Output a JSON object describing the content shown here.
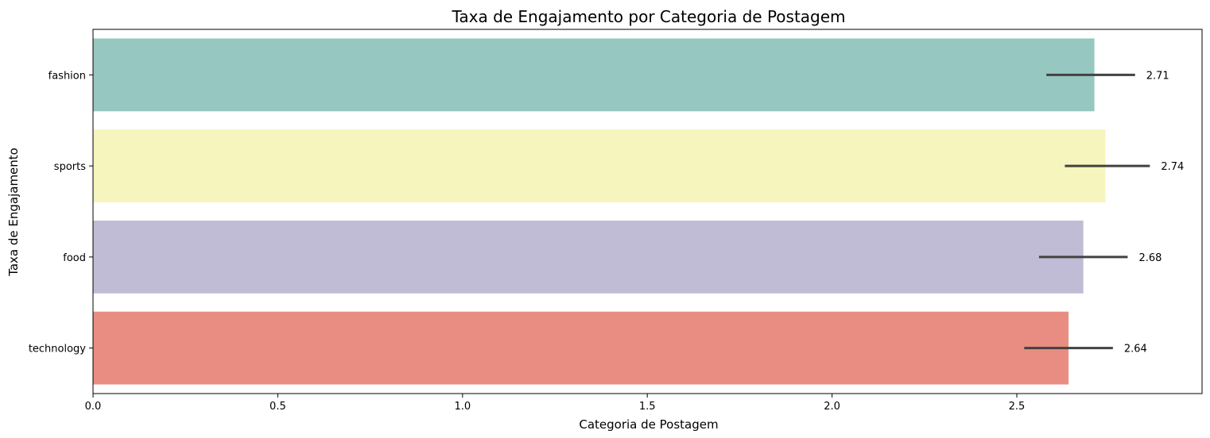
{
  "chart_data": {
    "type": "bar",
    "orientation": "horizontal",
    "title": "Taxa de Engajamento por Categoria de Postagem",
    "xlabel": "Categoria de Postagem",
    "ylabel": "Taxa de Engajamento",
    "xlim": [
      0,
      3.0
    ],
    "xticks": [
      0.0,
      0.5,
      1.0,
      1.5,
      2.0,
      2.5
    ],
    "xtick_labels": [
      "0.0",
      "0.5",
      "1.0",
      "1.5",
      "2.0",
      "2.5"
    ],
    "grid": false,
    "categories": [
      "fashion",
      "sports",
      "food",
      "technology"
    ],
    "values": [
      2.71,
      2.74,
      2.68,
      2.64
    ],
    "value_labels": [
      "2.71",
      "2.74",
      "2.68",
      "2.64"
    ],
    "error_bars": [
      [
        2.58,
        2.82
      ],
      [
        2.63,
        2.86
      ],
      [
        2.56,
        2.8
      ],
      [
        2.52,
        2.76
      ]
    ],
    "colors": [
      "#96c7c0",
      "#f6f5bd",
      "#c0bcd5",
      "#e98d82"
    ],
    "error_color": "#424242"
  }
}
